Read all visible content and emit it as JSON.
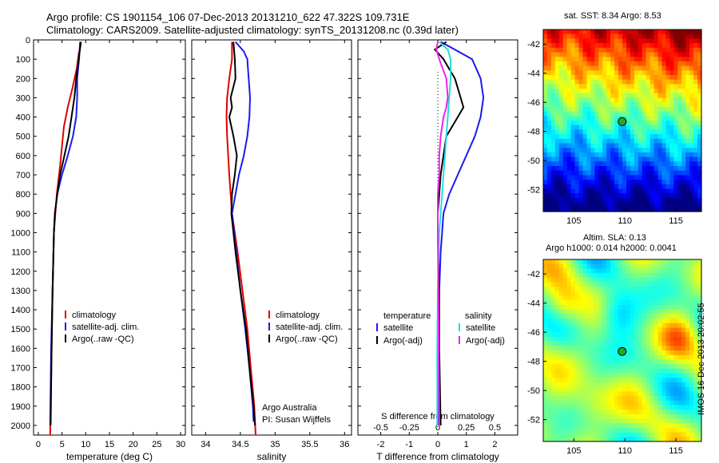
{
  "header": {
    "line1": "Argo profile: CS 1901154_106 07-Dec-2013 20131210_622 47.322S 109.731E",
    "line2": "Climatology: CARS2009. Satellite-adjusted climatology: synTS_20131208.nc (0.39d later)"
  },
  "stamp": "IMOS 16-Dec-2013 20:02:55",
  "colors": {
    "climatology": "#e00000",
    "satellite": "#1a1aee",
    "argo": "#000000",
    "sat_diff": "#22dddd",
    "argo_diff": "#ee22ee"
  },
  "chart_data": [
    {
      "type": "line",
      "id": "temperature",
      "xlabel": "temperature (deg C)",
      "ylabel": "",
      "xlim": [
        -1,
        31
      ],
      "ylim": [
        2050,
        0
      ],
      "xticks": [
        0,
        5,
        10,
        15,
        20,
        25,
        30
      ],
      "yticks": [
        0,
        100,
        200,
        300,
        400,
        500,
        600,
        700,
        800,
        900,
        1000,
        1100,
        1200,
        1300,
        1400,
        1500,
        1600,
        1700,
        1800,
        1900,
        2000
      ],
      "legend": [
        "climatology",
        "satellite-adj. clim.",
        "Argo(..raw -QC)"
      ],
      "series": [
        {
          "name": "climatology",
          "color": "#e00000",
          "depth": [
            60,
            150,
            250,
            350,
            450,
            550,
            650,
            800,
            1000,
            1300,
            1600,
            2050
          ],
          "values": [
            8.6,
            8.1,
            7.2,
            6.2,
            5.4,
            5.0,
            4.6,
            3.9,
            3.3,
            3.0,
            2.8,
            2.5
          ]
        },
        {
          "name": "satellite-adj. clim.",
          "color": "#1a1aee",
          "depth": [
            10,
            100,
            200,
            300,
            400,
            500,
            600,
            700,
            800,
            900,
            1000,
            1300,
            1600,
            2000
          ],
          "values": [
            8.8,
            8.6,
            8.2,
            8.2,
            8.0,
            7.3,
            6.2,
            5.0,
            4.0,
            3.5,
            3.3,
            3.0,
            2.7,
            2.5
          ]
        },
        {
          "name": "Argo(..raw -QC)",
          "color": "#000000",
          "depth": [
            10,
            100,
            200,
            300,
            400,
            500,
            600,
            700,
            800,
            900,
            1000,
            1300,
            1600,
            2000
          ],
          "values": [
            9.0,
            8.5,
            8.0,
            7.6,
            7.0,
            6.4,
            5.5,
            4.6,
            4.0,
            3.5,
            3.3,
            3.0,
            2.8,
            2.6
          ]
        }
      ]
    },
    {
      "type": "line",
      "id": "salinity",
      "xlabel": "salinity",
      "ylabel": "",
      "xlim": [
        33.8,
        36.1
      ],
      "ylim": [
        2050,
        0
      ],
      "xticks": [
        34,
        34.5,
        35,
        35.5,
        36
      ],
      "legend": [
        "climatology",
        "satellite-adj. clim.",
        "Argo(..raw -QC)"
      ],
      "annotation": [
        "Argo Australia",
        "PI: Susan Wijffels"
      ],
      "series": [
        {
          "name": "climatology",
          "color": "#e00000",
          "depth": [
            10,
            100,
            200,
            300,
            400,
            500,
            700,
            900,
            1100,
            1300,
            1500,
            1700,
            1900,
            2050
          ],
          "values": [
            34.38,
            34.38,
            34.34,
            34.31,
            34.3,
            34.31,
            34.34,
            34.38,
            34.46,
            34.53,
            34.6,
            34.65,
            34.7,
            34.72
          ]
        },
        {
          "name": "satellite-adj. clim.",
          "color": "#1a1aee",
          "depth": [
            10,
            60,
            100,
            150,
            200,
            300,
            400,
            500,
            600,
            700,
            800,
            900,
            1100,
            1300,
            1500,
            1700,
            1900,
            1980
          ],
          "values": [
            34.43,
            34.55,
            34.6,
            34.61,
            34.62,
            34.64,
            34.63,
            34.6,
            34.55,
            34.48,
            34.43,
            34.38,
            34.44,
            34.5,
            34.57,
            34.63,
            34.68,
            34.69
          ]
        },
        {
          "name": "Argo(..raw -QC)",
          "color": "#000000",
          "depth": [
            10,
            100,
            200,
            300,
            350,
            400,
            500,
            600,
            700,
            800,
            900,
            1100,
            1300,
            1500,
            1700,
            1900,
            2000
          ],
          "values": [
            34.4,
            34.42,
            34.43,
            34.36,
            34.38,
            34.34,
            34.4,
            34.45,
            34.42,
            34.38,
            34.37,
            34.43,
            34.5,
            34.58,
            34.63,
            34.69,
            34.71
          ]
        }
      ]
    },
    {
      "type": "line",
      "id": "difference",
      "xlabel": "T difference from climatology",
      "ylabel": "",
      "xlim": [
        -2.8,
        2.8
      ],
      "ylim": [
        2050,
        0
      ],
      "xticks": [
        -2,
        -1,
        0,
        1,
        2
      ],
      "top_axis_label": "S difference from climatology",
      "top_xticks": [
        -0.5,
        -0.25,
        0,
        0.25,
        0.5
      ],
      "legend": [
        {
          "group": "temperature",
          "items": [
            "satellite",
            "Argo(-adj)"
          ]
        },
        {
          "group": "salinity",
          "items": [
            "satellite",
            "Argo(-adj)"
          ]
        }
      ],
      "series": [
        {
          "name": "temperature satellite",
          "color": "#1a1aee",
          "depth": [
            10,
            50,
            100,
            200,
            300,
            400,
            500,
            600,
            700,
            800,
            900,
            1000,
            1100,
            1300,
            1600,
            2000
          ],
          "values": [
            0.1,
            0.6,
            1.2,
            1.5,
            1.6,
            1.5,
            1.3,
            1.0,
            0.7,
            0.4,
            0.2,
            0.15,
            0.1,
            0.05,
            0.02,
            0.0
          ]
        },
        {
          "name": "temperature Argo(-adj)",
          "color": "#000000",
          "depth": [
            10,
            50,
            100,
            200,
            300,
            350,
            400,
            500,
            600,
            700,
            800,
            900,
            1000,
            1300,
            1600,
            2000
          ],
          "values": [
            0.3,
            -0.1,
            0.2,
            0.6,
            0.8,
            0.9,
            0.7,
            0.3,
            0.2,
            0.1,
            0.05,
            0.0,
            0.0,
            0.05,
            0.05,
            0.1
          ]
        },
        {
          "name": "salinity satellite",
          "color": "#22dddd",
          "depth": [
            10,
            50,
            100,
            200,
            300,
            400,
            500,
            600,
            700,
            800,
            900,
            1000,
            1300,
            1600,
            2000
          ],
          "values": [
            0.05,
            0.35,
            0.45,
            0.45,
            0.4,
            0.35,
            0.3,
            0.25,
            0.2,
            0.15,
            0.1,
            0.05,
            0.0,
            -0.02,
            -0.02
          ]
        },
        {
          "name": "salinity Argo(-adj)",
          "color": "#ee22ee",
          "depth": [
            10,
            50,
            100,
            200,
            300,
            350,
            400,
            500,
            600,
            700,
            800,
            900,
            1000,
            1300,
            1600,
            2000
          ],
          "values": [
            0.0,
            -0.05,
            0.05,
            0.3,
            0.35,
            0.3,
            0.2,
            0.1,
            0.05,
            0.05,
            0.0,
            0.0,
            0.0,
            0.02,
            0.03,
            0.05
          ]
        }
      ]
    }
  ],
  "maps": [
    {
      "id": "sst",
      "title": "sat. SST: 8.34  Argo: 8.53",
      "lon": [
        102,
        117.5
      ],
      "lat": [
        -53.5,
        -41
      ],
      "xticks": [
        105,
        110,
        115
      ],
      "yticks": [
        -42,
        -44,
        -46,
        -48,
        -50,
        -52
      ],
      "point": [
        109.73,
        -47.32
      ]
    },
    {
      "id": "sla",
      "title1": "Altim. SLA: 0.13",
      "title2": "Argo h1000: 0.014 h2000: 0.0041",
      "lon": [
        102,
        117.5
      ],
      "lat": [
        -53.5,
        -41
      ],
      "xticks": [
        105,
        110,
        115
      ],
      "yticks": [
        -42,
        -44,
        -46,
        -48,
        -50,
        -52
      ],
      "point": [
        109.73,
        -47.32
      ]
    }
  ]
}
